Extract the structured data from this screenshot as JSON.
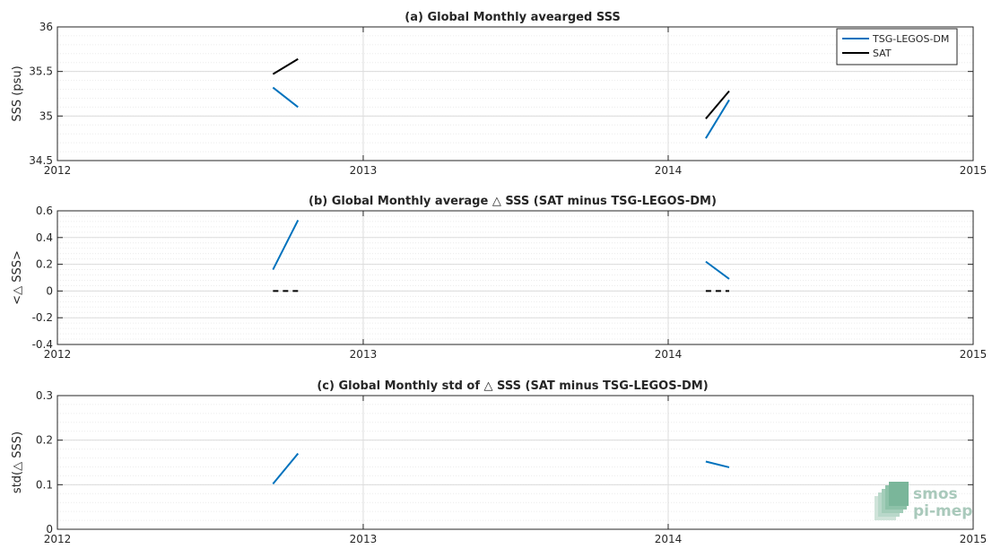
{
  "chart_data": [
    {
      "type": "line",
      "title": "(a) Global Monthly avearged SSS",
      "ylabel": "SSS (psu)",
      "xlabel": "",
      "xlim": [
        "2012-01-01",
        "2015-01-01"
      ],
      "ylim": [
        34.5,
        36
      ],
      "x_ticks": [
        "2012",
        "2013",
        "2014",
        "2015"
      ],
      "y_ticks": [
        "34.5",
        "35",
        "35.5",
        "36"
      ],
      "grid": true,
      "legend_position": "top-right",
      "series": [
        {
          "name": "TSG-LEGOS-DM",
          "color": "#0072bd",
          "style": "solid",
          "segments": [
            {
              "x": [
                "2012-09-15",
                "2012-10-15"
              ],
              "y": [
                35.32,
                35.1
              ]
            },
            {
              "x": [
                "2014-02-15",
                "2014-03-15"
              ],
              "y": [
                34.75,
                35.18
              ]
            }
          ]
        },
        {
          "name": "SAT",
          "color": "#000000",
          "style": "solid",
          "segments": [
            {
              "x": [
                "2012-09-15",
                "2012-10-15"
              ],
              "y": [
                35.47,
                35.64
              ]
            },
            {
              "x": [
                "2014-02-15",
                "2014-03-15"
              ],
              "y": [
                34.97,
                35.28
              ]
            }
          ]
        }
      ]
    },
    {
      "type": "line",
      "title": "(b) Global Monthly average △ SSS (SAT minus TSG-LEGOS-DM)",
      "ylabel": "<△ SSS>",
      "xlabel": "",
      "xlim": [
        "2012-01-01",
        "2015-01-01"
      ],
      "ylim": [
        -0.4,
        0.6
      ],
      "x_ticks": [
        "2012",
        "2013",
        "2014",
        "2015"
      ],
      "y_ticks": [
        "-0.4",
        "-0.2",
        "0",
        "0.2",
        "0.4",
        "0.6"
      ],
      "grid": true,
      "series": [
        {
          "color": "#0072bd",
          "style": "solid",
          "segments": [
            {
              "x": [
                "2012-09-15",
                "2012-10-15"
              ],
              "y": [
                0.16,
                0.53
              ]
            },
            {
              "x": [
                "2014-02-15",
                "2014-03-15"
              ],
              "y": [
                0.22,
                0.09
              ]
            }
          ]
        },
        {
          "color": "#000000",
          "style": "dashed",
          "segments": [
            {
              "x": [
                "2012-09-15",
                "2012-10-15"
              ],
              "y": [
                0,
                0
              ]
            },
            {
              "x": [
                "2014-02-15",
                "2014-03-15"
              ],
              "y": [
                0,
                0
              ]
            }
          ]
        }
      ]
    },
    {
      "type": "line",
      "title": "(c) Global Monthly std of △ SSS (SAT minus TSG-LEGOS-DM)",
      "ylabel": "std(△ SSS)",
      "xlabel": "",
      "xlim": [
        "2012-01-01",
        "2015-01-01"
      ],
      "ylim": [
        0,
        0.3
      ],
      "x_ticks": [
        "2012",
        "2013",
        "2014",
        "2015"
      ],
      "y_ticks": [
        "0",
        "0.1",
        "0.2",
        "0.3"
      ],
      "grid": true,
      "series": [
        {
          "color": "#0072bd",
          "style": "solid",
          "segments": [
            {
              "x": [
                "2012-09-15",
                "2012-10-15"
              ],
              "y": [
                0.102,
                0.17
              ]
            },
            {
              "x": [
                "2014-02-15",
                "2014-03-15"
              ],
              "y": [
                0.152,
                0.139
              ]
            }
          ]
        }
      ]
    }
  ],
  "logo": {
    "line1": "smos",
    "line2": "pi-mep",
    "color": "#a9c9bb"
  }
}
